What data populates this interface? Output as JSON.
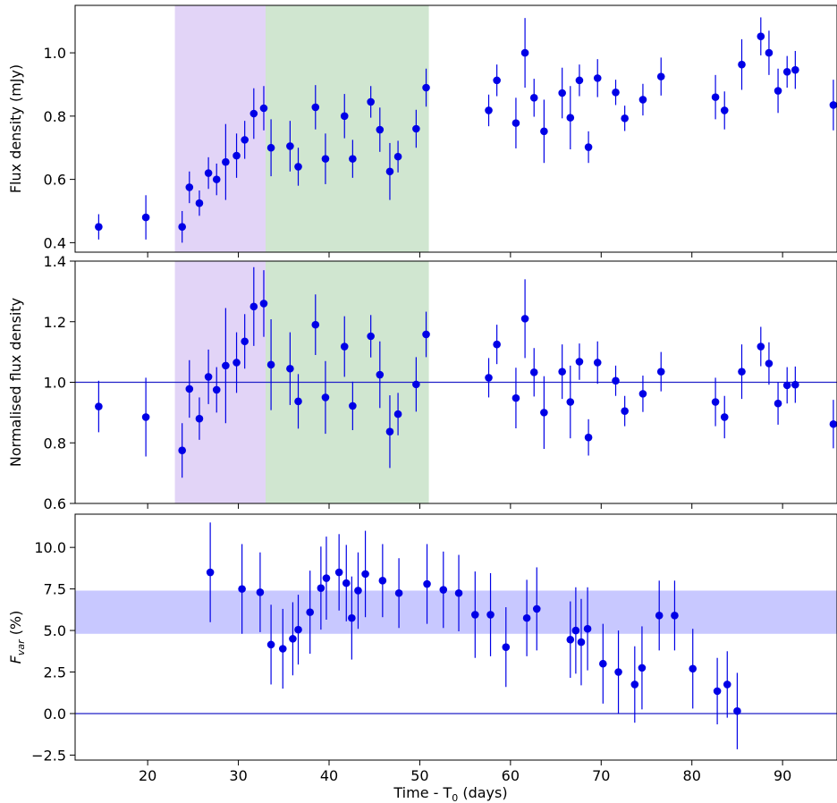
{
  "chart_data": [
    {
      "type": "scatter",
      "ylabel": "Flux density (mJy)",
      "xlim": [
        12,
        96
      ],
      "ylim": [
        0.37,
        1.15
      ],
      "yticks": [
        0.4,
        0.6,
        0.8,
        1.0
      ],
      "ytick_labels": [
        "0.4",
        "0.6",
        "0.8",
        "1.0"
      ],
      "xticks": [
        20,
        30,
        40,
        50,
        60,
        70,
        80,
        90
      ],
      "shaded_regions": [
        {
          "x0": 23,
          "x1": 33,
          "color": "#e2d4f7"
        },
        {
          "x0": 33,
          "x1": 51,
          "color": "#d0e6d0"
        }
      ],
      "marker_color": "#0000e6",
      "series": [
        {
          "points": [
            [
              14.6,
              0.45,
              0.04
            ],
            [
              19.8,
              0.48,
              0.07
            ],
            [
              23.8,
              0.45,
              0.05
            ],
            [
              24.6,
              0.575,
              0.05
            ],
            [
              25.7,
              0.525,
              0.04
            ],
            [
              26.7,
              0.62,
              0.05
            ],
            [
              27.6,
              0.6,
              0.05
            ],
            [
              28.6,
              0.655,
              0.12
            ],
            [
              29.8,
              0.675,
              0.07
            ],
            [
              30.7,
              0.725,
              0.06
            ],
            [
              31.7,
              0.808,
              0.08
            ],
            [
              32.8,
              0.825,
              0.07
            ],
            [
              33.6,
              0.7,
              0.09
            ],
            [
              35.7,
              0.705,
              0.08
            ],
            [
              36.6,
              0.64,
              0.06
            ],
            [
              38.5,
              0.828,
              0.07
            ],
            [
              39.6,
              0.665,
              0.08
            ],
            [
              41.7,
              0.8,
              0.07
            ],
            [
              42.6,
              0.665,
              0.06
            ],
            [
              44.6,
              0.845,
              0.05
            ],
            [
              45.6,
              0.757,
              0.07
            ],
            [
              46.7,
              0.625,
              0.09
            ],
            [
              47.6,
              0.672,
              0.05
            ],
            [
              49.6,
              0.76,
              0.06
            ],
            [
              50.7,
              0.89,
              0.06
            ],
            [
              57.6,
              0.818,
              0.05
            ],
            [
              58.5,
              0.913,
              0.05
            ],
            [
              60.6,
              0.778,
              0.08
            ],
            [
              61.6,
              1.0,
              0.11
            ],
            [
              62.6,
              0.858,
              0.06
            ],
            [
              63.7,
              0.752,
              0.1
            ],
            [
              65.7,
              0.873,
              0.08
            ],
            [
              66.6,
              0.795,
              0.1
            ],
            [
              67.6,
              0.913,
              0.05
            ],
            [
              68.6,
              0.702,
              0.05
            ],
            [
              69.6,
              0.92,
              0.06
            ],
            [
              71.6,
              0.875,
              0.04
            ],
            [
              72.6,
              0.793,
              0.04
            ],
            [
              74.6,
              0.852,
              0.05
            ],
            [
              76.6,
              0.925,
              0.06
            ],
            [
              82.6,
              0.86,
              0.07
            ],
            [
              83.6,
              0.818,
              0.06
            ],
            [
              85.5,
              0.963,
              0.08
            ],
            [
              87.6,
              1.052,
              0.06
            ],
            [
              88.5,
              1.0,
              0.07
            ],
            [
              89.5,
              0.88,
              0.07
            ],
            [
              90.5,
              0.94,
              0.05
            ],
            [
              91.4,
              0.946,
              0.06
            ],
            [
              95.6,
              0.835,
              0.08
            ]
          ]
        }
      ]
    },
    {
      "type": "scatter",
      "ylabel": "Normalised flux density",
      "xlim": [
        12,
        96
      ],
      "ylim": [
        0.6,
        1.4
      ],
      "yticks": [
        0.6,
        0.8,
        1.0,
        1.2,
        1.4
      ],
      "ytick_labels": [
        "0.6",
        "0.8",
        "1.0",
        "1.2",
        "1.4"
      ],
      "xticks": [
        20,
        30,
        40,
        50,
        60,
        70,
        80,
        90
      ],
      "hline": 1.0,
      "shaded_regions": [
        {
          "x0": 23,
          "x1": 33,
          "color": "#e2d4f7"
        },
        {
          "x0": 33,
          "x1": 51,
          "color": "#d0e6d0"
        }
      ],
      "marker_color": "#0000e6",
      "series": [
        {
          "points": [
            [
              14.6,
              0.92,
              0.085
            ],
            [
              19.8,
              0.885,
              0.13
            ],
            [
              23.8,
              0.775,
              0.09
            ],
            [
              24.6,
              0.978,
              0.095
            ],
            [
              25.7,
              0.88,
              0.07
            ],
            [
              26.7,
              1.018,
              0.09
            ],
            [
              27.6,
              0.975,
              0.075
            ],
            [
              28.6,
              1.055,
              0.19
            ],
            [
              29.8,
              1.065,
              0.1
            ],
            [
              30.7,
              1.135,
              0.09
            ],
            [
              31.7,
              1.25,
              0.13
            ],
            [
              32.8,
              1.26,
              0.11
            ],
            [
              33.6,
              1.058,
              0.15
            ],
            [
              35.7,
              1.045,
              0.12
            ],
            [
              36.6,
              0.937,
              0.09
            ],
            [
              38.5,
              1.19,
              0.1
            ],
            [
              39.6,
              0.95,
              0.12
            ],
            [
              41.7,
              1.118,
              0.1
            ],
            [
              42.6,
              0.922,
              0.08
            ],
            [
              44.6,
              1.152,
              0.07
            ],
            [
              45.6,
              1.025,
              0.11
            ],
            [
              46.7,
              0.837,
              0.12
            ],
            [
              47.6,
              0.895,
              0.07
            ],
            [
              49.6,
              0.993,
              0.09
            ],
            [
              50.7,
              1.158,
              0.075
            ],
            [
              57.6,
              1.015,
              0.065
            ],
            [
              58.5,
              1.125,
              0.065
            ],
            [
              60.6,
              0.948,
              0.1
            ],
            [
              61.6,
              1.21,
              0.13
            ],
            [
              62.6,
              1.033,
              0.08
            ],
            [
              63.7,
              0.9,
              0.12
            ],
            [
              65.7,
              1.035,
              0.09
            ],
            [
              66.6,
              0.935,
              0.12
            ],
            [
              67.6,
              1.068,
              0.06
            ],
            [
              68.6,
              0.818,
              0.06
            ],
            [
              69.6,
              1.065,
              0.07
            ],
            [
              71.6,
              1.005,
              0.05
            ],
            [
              72.6,
              0.905,
              0.05
            ],
            [
              74.6,
              0.962,
              0.06
            ],
            [
              76.6,
              1.035,
              0.065
            ],
            [
              82.6,
              0.935,
              0.08
            ],
            [
              83.6,
              0.885,
              0.07
            ],
            [
              85.5,
              1.035,
              0.09
            ],
            [
              87.6,
              1.118,
              0.065
            ],
            [
              88.5,
              1.062,
              0.07
            ],
            [
              89.5,
              0.93,
              0.07
            ],
            [
              90.5,
              0.99,
              0.06
            ],
            [
              91.4,
              0.992,
              0.06
            ],
            [
              95.6,
              0.862,
              0.08
            ]
          ]
        }
      ]
    },
    {
      "type": "scatter",
      "ylabel": "F_var (%)",
      "ylabel_parts": [
        "F",
        "var",
        " (%)"
      ],
      "xlabel": "Time - T_0 (days)",
      "xlabel_parts": [
        "Time - T",
        "0",
        " (days)"
      ],
      "xlim": [
        12,
        96
      ],
      "ylim": [
        -2.8,
        12.0
      ],
      "yticks": [
        -2.5,
        0.0,
        2.5,
        5.0,
        7.5,
        10.0
      ],
      "ytick_labels": [
        "−2.5",
        "0.0",
        "2.5",
        "5.0",
        "7.5",
        "10.0"
      ],
      "xticks": [
        20,
        30,
        40,
        50,
        60,
        70,
        80,
        90
      ],
      "xtick_labels": [
        "20",
        "30",
        "40",
        "50",
        "60",
        "70",
        "80",
        "90"
      ],
      "hline": 0.0,
      "band": {
        "y0": 4.8,
        "y1": 7.4,
        "color": "#c8c8ff"
      },
      "marker_color": "#0000e6",
      "series": [
        {
          "points": [
            [
              26.9,
              8.5,
              3.0
            ],
            [
              30.4,
              7.5,
              2.7
            ],
            [
              32.4,
              7.3,
              2.4
            ],
            [
              33.6,
              4.15,
              2.4
            ],
            [
              34.9,
              3.9,
              2.4
            ],
            [
              36.0,
              4.5,
              2.2
            ],
            [
              36.6,
              5.05,
              2.1
            ],
            [
              37.9,
              6.1,
              2.5
            ],
            [
              39.1,
              7.55,
              2.5
            ],
            [
              39.7,
              8.15,
              2.5
            ],
            [
              41.1,
              8.5,
              2.3
            ],
            [
              41.9,
              7.85,
              2.3
            ],
            [
              42.5,
              5.75,
              2.5
            ],
            [
              43.2,
              7.4,
              2.3
            ],
            [
              44.0,
              8.4,
              2.6
            ],
            [
              45.9,
              8.0,
              2.2
            ],
            [
              47.7,
              7.25,
              2.1
            ],
            [
              50.8,
              7.8,
              2.4
            ],
            [
              52.6,
              7.45,
              2.3
            ],
            [
              54.3,
              7.25,
              2.3
            ],
            [
              56.1,
              5.95,
              2.6
            ],
            [
              57.8,
              5.95,
              2.5
            ],
            [
              59.5,
              4.0,
              2.4
            ],
            [
              61.8,
              5.75,
              2.3
            ],
            [
              62.9,
              6.3,
              2.5
            ],
            [
              66.6,
              4.45,
              2.3
            ],
            [
              67.2,
              5.0,
              2.6
            ],
            [
              67.8,
              4.3,
              2.6
            ],
            [
              68.5,
              5.1,
              2.5
            ],
            [
              70.2,
              3.0,
              2.4
            ],
            [
              71.9,
              2.5,
              2.5
            ],
            [
              73.7,
              1.75,
              2.3
            ],
            [
              74.5,
              2.75,
              2.5
            ],
            [
              76.4,
              5.9,
              2.1
            ],
            [
              78.1,
              5.9,
              2.1
            ],
            [
              80.1,
              2.7,
              2.4
            ],
            [
              82.8,
              1.35,
              2.0
            ],
            [
              83.9,
              1.75,
              2.0
            ],
            [
              85.0,
              0.15,
              2.3
            ]
          ]
        }
      ]
    }
  ]
}
